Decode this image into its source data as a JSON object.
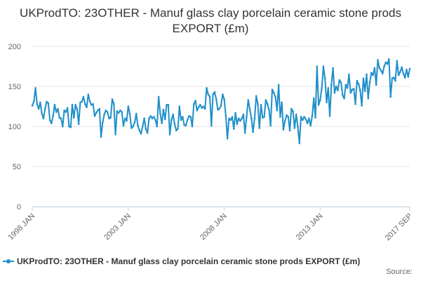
{
  "chart_data": {
    "type": "line",
    "title": "UKProdTO: 23OTHER - Manuf glass clay porcelain ceramic stone prods EXPORT (£m)",
    "xlabel": "",
    "ylabel": "",
    "ylim": [
      0,
      200
    ],
    "yticks": [
      0,
      50,
      100,
      150,
      200
    ],
    "x_start": "1998 JAN",
    "x_end": "2017 SEP",
    "xtick_labels": [
      "1998 JAN",
      "2003 JAN",
      "2008 JAN",
      "2013 JAN",
      "2017 SEP"
    ],
    "grid": true,
    "legend_position": "bottom-left",
    "series": [
      {
        "name": "UKProdTO: 23OTHER - Manuf glass clay porcelain ceramic stone prods EXPORT (£m)",
        "color": "#1f8fc9",
        "values": [
          126,
          131,
          148,
          128,
          122,
          130,
          116,
          110,
          122,
          131,
          129,
          108,
          104,
          113,
          127,
          118,
          122,
          111,
          110,
          100,
          120,
          118,
          123,
          100,
          99,
          127,
          111,
          127,
          122,
          103,
          130,
          131,
          137,
          128,
          124,
          140,
          131,
          127,
          128,
          113,
          117,
          120,
          122,
          87,
          105,
          115,
          120,
          118,
          110,
          111,
          134,
          128,
          90,
          119,
          117,
          120,
          118,
          101,
          110,
          107,
          125,
          116,
          98,
          100,
          105,
          116,
          101,
          95,
          91,
          100,
          110,
          97,
          92,
          110,
          113,
          110,
          112,
          108,
          100,
          137,
          116,
          104,
          121,
          109,
          127,
          127,
          90,
          108,
          115,
          103,
          95,
          97,
          125,
          108,
          112,
          102,
          101,
          108,
          113,
          112,
          100,
          128,
          132,
          120,
          124,
          127,
          123,
          125,
          122,
          148,
          140,
          137,
          101,
          140,
          143,
          134,
          121,
          122,
          126,
          140,
          134,
          113,
          85,
          110,
          108,
          112,
          97,
          117,
          103,
          110,
          107,
          110,
          115,
          92,
          112,
          133,
          122,
          110,
          93,
          110,
          138,
          128,
          98,
          127,
          111,
          112,
          133,
          128,
          121,
          101,
          146,
          142,
          137,
          120,
          152,
          112,
          130,
          96,
          107,
          114,
          112,
          95,
          122,
          119,
          98,
          115,
          100,
          79,
          112,
          108,
          112,
          109,
          104,
          110,
          101,
          113,
          135,
          111,
          175,
          127,
          133,
          148,
          175,
          160,
          130,
          148,
          113,
          152,
          173,
          142,
          150,
          145,
          158,
          155,
          139,
          135,
          152,
          148,
          165,
          142,
          146,
          147,
          128,
          157,
          153,
          145,
          126,
          160,
          144,
          165,
          135,
          155,
          167,
          164,
          173,
          152,
          183,
          173,
          170,
          166,
          175,
          180,
          178,
          184,
          137,
          160,
          161,
          157,
          182,
          164,
          168,
          174,
          166,
          161,
          171,
          162,
          172
        ]
      }
    ]
  },
  "legend": {
    "label": "UKProdTO: 23OTHER - Manuf glass clay porcelain ceramic stone prods EXPORT (£m)"
  },
  "source_label": "Source:"
}
